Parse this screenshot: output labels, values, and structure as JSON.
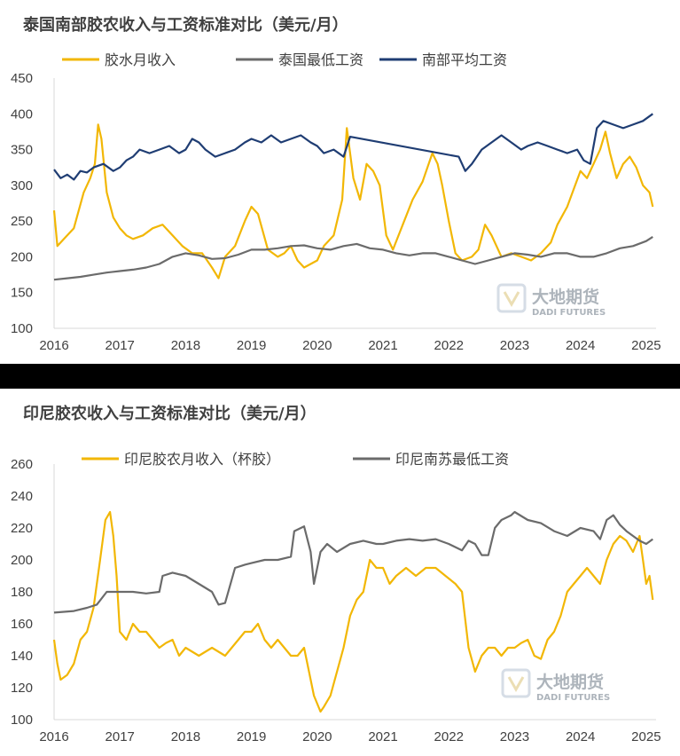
{
  "chart_data": [
    {
      "type": "line",
      "title": "泰国南部胶农收入与工资标准对比（美元/月）",
      "ylim": [
        100,
        450
      ],
      "yticks": [
        "100",
        "150",
        "200",
        "250",
        "300",
        "350",
        "400",
        "450"
      ],
      "xlim": [
        2016,
        2025.15
      ],
      "xticks": [
        "2016",
        "2017",
        "2018",
        "2019",
        "2020",
        "2021",
        "2022",
        "2023",
        "2024",
        "2025"
      ],
      "legend_position": "top",
      "grid": false,
      "series": [
        {
          "name": "胶水月收入",
          "color": "#F2B705",
          "x": [
            2016.0,
            2016.05,
            2016.15,
            2016.3,
            2016.45,
            2016.55,
            2016.62,
            2016.67,
            2016.72,
            2016.8,
            2016.9,
            2017.0,
            2017.1,
            2017.2,
            2017.35,
            2017.5,
            2017.65,
            2017.8,
            2017.95,
            2018.1,
            2018.25,
            2018.4,
            2018.5,
            2018.6,
            2018.75,
            2018.9,
            2019.0,
            2019.1,
            2019.25,
            2019.4,
            2019.5,
            2019.6,
            2019.7,
            2019.8,
            2019.9,
            2020.0,
            2020.1,
            2020.25,
            2020.38,
            2020.45,
            2020.55,
            2020.65,
            2020.75,
            2020.85,
            2020.95,
            2021.05,
            2021.15,
            2021.3,
            2021.45,
            2021.6,
            2021.75,
            2021.83,
            2021.9,
            2022.0,
            2022.1,
            2022.2,
            2022.35,
            2022.45,
            2022.55,
            2022.65,
            2022.8,
            2022.95,
            2023.1,
            2023.25,
            2023.4,
            2023.55,
            2023.65,
            2023.8,
            2023.92,
            2024.0,
            2024.1,
            2024.2,
            2024.3,
            2024.38,
            2024.45,
            2024.55,
            2024.65,
            2024.75,
            2024.85,
            2024.95,
            2025.05,
            2025.1
          ],
          "values": [
            265,
            215,
            225,
            240,
            290,
            310,
            330,
            385,
            365,
            290,
            255,
            240,
            230,
            225,
            230,
            240,
            245,
            230,
            215,
            205,
            205,
            185,
            170,
            200,
            215,
            250,
            270,
            260,
            210,
            200,
            205,
            215,
            195,
            185,
            190,
            195,
            215,
            230,
            280,
            380,
            310,
            280,
            330,
            320,
            300,
            230,
            210,
            245,
            280,
            305,
            345,
            330,
            300,
            250,
            205,
            195,
            200,
            210,
            245,
            230,
            200,
            205,
            200,
            195,
            205,
            220,
            245,
            270,
            300,
            320,
            310,
            330,
            350,
            375,
            345,
            310,
            330,
            340,
            325,
            300,
            290,
            270
          ]
        },
        {
          "name": "泰国最低工资",
          "color": "#6B6B6B",
          "x": [
            2016.0,
            2016.2,
            2016.4,
            2016.6,
            2016.8,
            2017.0,
            2017.2,
            2017.4,
            2017.6,
            2017.8,
            2018.0,
            2018.2,
            2018.4,
            2018.6,
            2018.8,
            2019.0,
            2019.2,
            2019.4,
            2019.6,
            2019.8,
            2020.0,
            2020.2,
            2020.4,
            2020.6,
            2020.8,
            2021.0,
            2021.2,
            2021.4,
            2021.6,
            2021.8,
            2022.0,
            2022.2,
            2022.4,
            2022.6,
            2022.8,
            2023.0,
            2023.2,
            2023.4,
            2023.6,
            2023.8,
            2024.0,
            2024.2,
            2024.4,
            2024.6,
            2024.8,
            2025.0,
            2025.1
          ],
          "values": [
            168,
            170,
            172,
            175,
            178,
            180,
            182,
            185,
            190,
            200,
            205,
            202,
            197,
            198,
            203,
            210,
            210,
            212,
            215,
            216,
            212,
            210,
            215,
            218,
            212,
            210,
            205,
            202,
            205,
            205,
            200,
            195,
            190,
            195,
            200,
            205,
            203,
            200,
            205,
            205,
            200,
            200,
            205,
            212,
            215,
            222,
            228
          ]
        },
        {
          "name": "南部平均工资",
          "color": "#1F3D73",
          "x": [
            2016.0,
            2016.1,
            2016.2,
            2016.3,
            2016.4,
            2016.5,
            2016.6,
            2016.75,
            2016.9,
            2017.0,
            2017.1,
            2017.2,
            2017.3,
            2017.45,
            2017.6,
            2017.75,
            2017.9,
            2018.0,
            2018.1,
            2018.2,
            2018.3,
            2018.45,
            2018.6,
            2018.75,
            2018.9,
            2019.0,
            2019.15,
            2019.3,
            2019.45,
            2019.6,
            2019.75,
            2019.9,
            2020.0,
            2020.1,
            2020.25,
            2020.4,
            2020.5,
            2022.15,
            2022.25,
            2022.35,
            2022.5,
            2022.65,
            2022.8,
            2022.95,
            2023.1,
            2023.2,
            2023.35,
            2023.5,
            2023.65,
            2023.8,
            2023.95,
            2024.05,
            2024.15,
            2024.25,
            2024.35,
            2024.5,
            2024.65,
            2024.8,
            2024.95,
            2025.1
          ],
          "values": [
            322,
            310,
            315,
            308,
            320,
            318,
            325,
            330,
            320,
            325,
            335,
            340,
            350,
            345,
            350,
            355,
            345,
            350,
            365,
            360,
            350,
            340,
            345,
            350,
            360,
            365,
            360,
            370,
            360,
            365,
            370,
            360,
            355,
            345,
            350,
            340,
            368,
            340,
            320,
            330,
            350,
            360,
            370,
            360,
            350,
            355,
            360,
            355,
            350,
            345,
            350,
            335,
            330,
            380,
            390,
            385,
            380,
            385,
            390,
            400
          ]
        }
      ]
    },
    {
      "type": "line",
      "title": "印尼胶农收入与工资标准对比（美元/月）",
      "ylim": [
        100,
        260
      ],
      "yticks": [
        "100",
        "120",
        "140",
        "160",
        "180",
        "200",
        "220",
        "240",
        "260"
      ],
      "xlim": [
        2016,
        2025.15
      ],
      "xticks": [
        "2016",
        "2017",
        "2018",
        "2019",
        "2020",
        "2021",
        "2022",
        "2023",
        "2024",
        "2025"
      ],
      "legend_position": "top",
      "grid": false,
      "series": [
        {
          "name": "印尼胶农月收入（杯胶）",
          "color": "#F2B705",
          "x": [
            2016.0,
            2016.05,
            2016.1,
            2016.2,
            2016.3,
            2016.4,
            2016.5,
            2016.6,
            2016.7,
            2016.78,
            2016.85,
            2016.9,
            2016.95,
            2017.0,
            2017.1,
            2017.2,
            2017.3,
            2017.4,
            2017.5,
            2017.6,
            2017.7,
            2017.8,
            2017.9,
            2018.0,
            2018.2,
            2018.4,
            2018.6,
            2018.8,
            2018.9,
            2019.0,
            2019.1,
            2019.2,
            2019.3,
            2019.4,
            2019.5,
            2019.6,
            2019.7,
            2019.8,
            2019.85,
            2019.9,
            2019.95,
            2020.0,
            2020.05,
            2020.1,
            2020.2,
            2020.3,
            2020.4,
            2020.5,
            2020.6,
            2020.7,
            2020.8,
            2020.9,
            2021.0,
            2021.1,
            2021.2,
            2021.35,
            2021.5,
            2021.65,
            2021.8,
            2021.95,
            2022.1,
            2022.2,
            2022.3,
            2022.4,
            2022.5,
            2022.6,
            2022.7,
            2022.8,
            2022.9,
            2023.0,
            2023.1,
            2023.2,
            2023.3,
            2023.4,
            2023.5,
            2023.6,
            2023.7,
            2023.8,
            2023.9,
            2024.0,
            2024.1,
            2024.2,
            2024.3,
            2024.4,
            2024.5,
            2024.6,
            2024.7,
            2024.8,
            2024.85,
            2024.9,
            2024.95,
            2025.0,
            2025.05,
            2025.1
          ],
          "values": [
            150,
            135,
            125,
            128,
            135,
            150,
            155,
            170,
            200,
            225,
            230,
            215,
            190,
            155,
            150,
            160,
            155,
            155,
            150,
            145,
            148,
            150,
            140,
            145,
            140,
            145,
            140,
            150,
            155,
            155,
            160,
            150,
            145,
            150,
            145,
            140,
            140,
            145,
            135,
            125,
            115,
            110,
            105,
            108,
            115,
            130,
            145,
            165,
            175,
            180,
            200,
            195,
            195,
            185,
            190,
            195,
            190,
            195,
            195,
            190,
            185,
            180,
            145,
            130,
            140,
            145,
            145,
            140,
            145,
            145,
            148,
            150,
            140,
            138,
            150,
            155,
            165,
            180,
            185,
            190,
            195,
            190,
            185,
            200,
            210,
            215,
            212,
            205,
            210,
            215,
            200,
            185,
            190,
            175
          ]
        },
        {
          "name": "印尼南苏最低工资",
          "color": "#6B6B6B",
          "x": [
            2016.0,
            2016.3,
            2016.5,
            2016.65,
            2016.8,
            2017.0,
            2017.2,
            2017.4,
            2017.6,
            2017.65,
            2017.8,
            2018.0,
            2018.2,
            2018.4,
            2018.5,
            2018.6,
            2018.75,
            2018.9,
            2019.0,
            2019.2,
            2019.4,
            2019.6,
            2019.65,
            2019.8,
            2019.9,
            2019.95,
            2020.05,
            2020.15,
            2020.3,
            2020.5,
            2020.7,
            2020.9,
            2021.0,
            2021.2,
            2021.4,
            2021.6,
            2021.8,
            2022.0,
            2022.2,
            2022.3,
            2022.4,
            2022.5,
            2022.6,
            2022.7,
            2022.8,
            2022.95,
            2023.0,
            2023.2,
            2023.4,
            2023.6,
            2023.8,
            2024.0,
            2024.2,
            2024.3,
            2024.4,
            2024.5,
            2024.6,
            2024.7,
            2024.8,
            2024.9,
            2025.0,
            2025.1
          ],
          "values": [
            167,
            168,
            170,
            172,
            180,
            180,
            180,
            179,
            180,
            190,
            192,
            190,
            185,
            180,
            172,
            173,
            195,
            197,
            198,
            200,
            200,
            202,
            218,
            221,
            205,
            185,
            205,
            210,
            205,
            210,
            212,
            210,
            210,
            212,
            213,
            212,
            213,
            210,
            206,
            212,
            210,
            203,
            203,
            220,
            225,
            228,
            230,
            225,
            223,
            218,
            215,
            220,
            218,
            213,
            225,
            228,
            222,
            218,
            215,
            212,
            210,
            213
          ]
        }
      ]
    }
  ],
  "watermark": {
    "cn": "大地期货",
    "en": "DADI FUTURES"
  }
}
